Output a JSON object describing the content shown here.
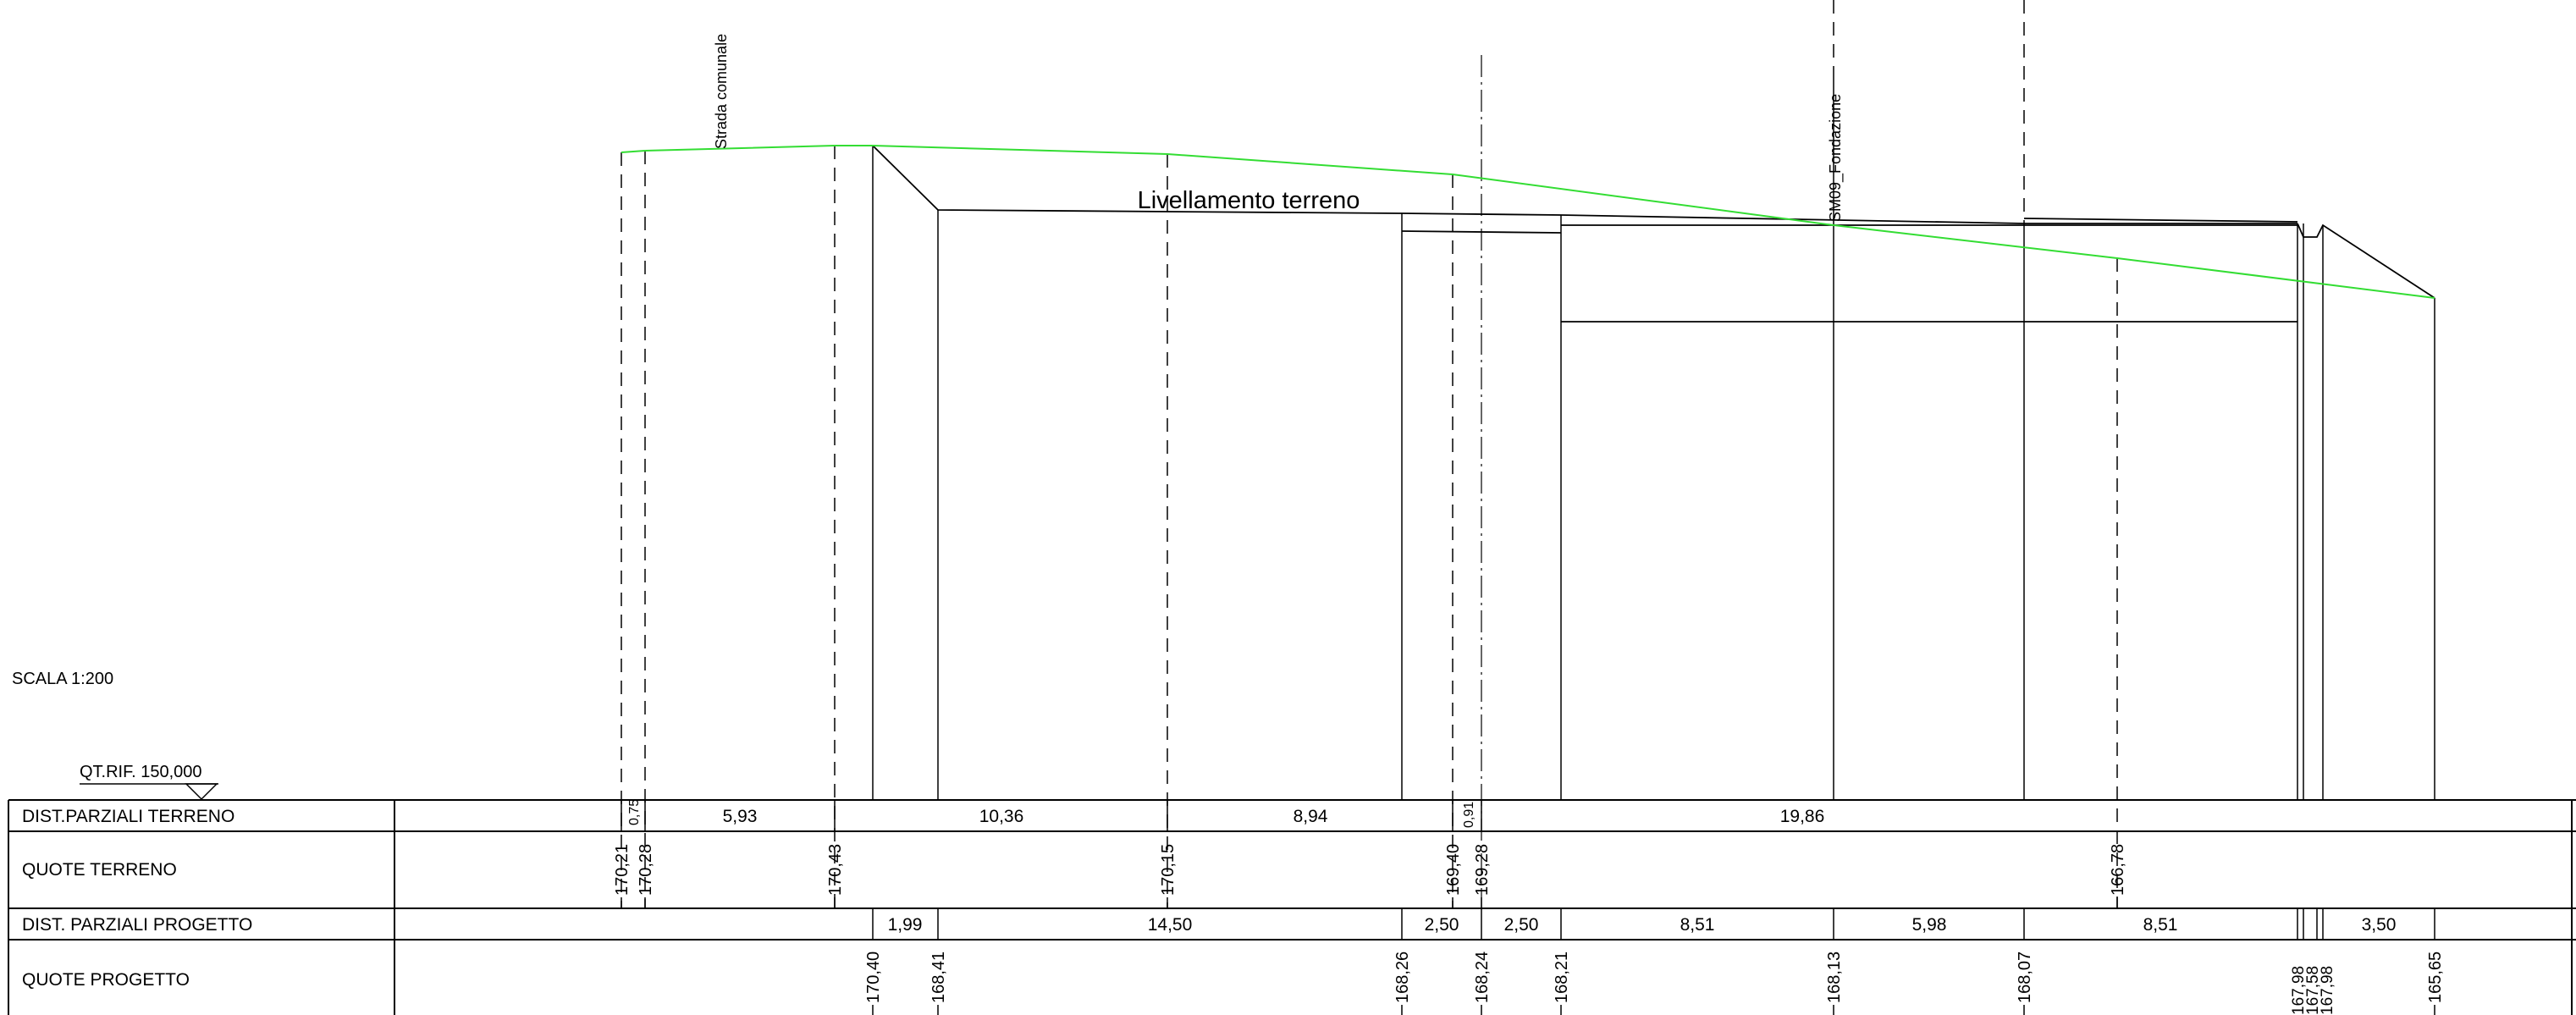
{
  "labels": {
    "scale": "SCALA 1:200",
    "reference_level": "QT.RIF. 150,000",
    "leveling": "Livellamento terreno",
    "road": "Strada comunale",
    "foundation": "SM09_Fondazione"
  },
  "table_rows": [
    "DIST.PARZIALI TERRENO",
    "QUOTE TERRENO",
    "DIST. PARZIALI PROGETTO",
    "QUOTE PROGETTO"
  ],
  "colors": {
    "terrain_line": "#33dd33",
    "ink": "#000000"
  },
  "terrain_partial_distances": [
    "0,75",
    "5,93",
    "10,36",
    "8,94",
    "0,91",
    "19,86"
  ],
  "terrain_elevations": [
    "170,21",
    "170,28",
    "170,43",
    "170,15",
    "169,40",
    "169,28",
    "166,78"
  ],
  "project_partial_distances": [
    "1,99",
    "14,50",
    "2,50",
    "2,50",
    "8,51",
    "5,98",
    "8,51",
    "3,50"
  ],
  "project_elevations": [
    "170,40",
    "168,41",
    "168,26",
    "168,24",
    "168,21",
    "168,13",
    "168,07",
    "167,98",
    "167,58",
    "167,98",
    "165,65"
  ]
}
